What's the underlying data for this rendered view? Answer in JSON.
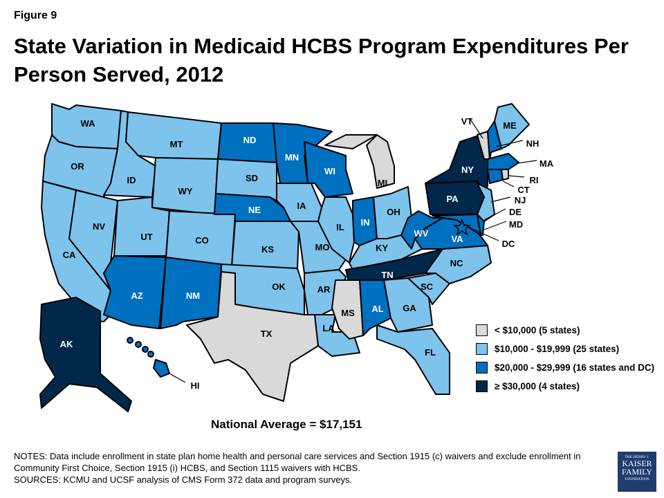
{
  "figure_label": "Figure 9",
  "title": "State Variation in Medicaid HCBS Program Expenditures Per Person Served, 2012",
  "colors": {
    "tier1": "#D9D9D9",
    "tier2": "#7DC3EC",
    "tier3": "#0070C0",
    "tier4": "#00284A"
  },
  "legend": [
    {
      "label": "< $10,000 (5 states)",
      "tier": "tier1"
    },
    {
      "label": "$10,000 - $19,999 (25 states)",
      "tier": "tier2"
    },
    {
      "label": "$20,000 - $29,999 (16 states and DC)",
      "tier": "tier3"
    },
    {
      "label": "≥ $30,000 (4 states)",
      "tier": "tier4"
    }
  ],
  "states": [
    {
      "abbr": "WA",
      "tier": "tier2"
    },
    {
      "abbr": "OR",
      "tier": "tier2"
    },
    {
      "abbr": "CA",
      "tier": "tier2"
    },
    {
      "abbr": "NV",
      "tier": "tier2"
    },
    {
      "abbr": "ID",
      "tier": "tier2"
    },
    {
      "abbr": "MT",
      "tier": "tier2"
    },
    {
      "abbr": "WY",
      "tier": "tier2"
    },
    {
      "abbr": "UT",
      "tier": "tier2"
    },
    {
      "abbr": "CO",
      "tier": "tier2"
    },
    {
      "abbr": "AZ",
      "tier": "tier3"
    },
    {
      "abbr": "NM",
      "tier": "tier3"
    },
    {
      "abbr": "ND",
      "tier": "tier3"
    },
    {
      "abbr": "SD",
      "tier": "tier2"
    },
    {
      "abbr": "NE",
      "tier": "tier3"
    },
    {
      "abbr": "KS",
      "tier": "tier2"
    },
    {
      "abbr": "OK",
      "tier": "tier2"
    },
    {
      "abbr": "TX",
      "tier": "tier1"
    },
    {
      "abbr": "MN",
      "tier": "tier3"
    },
    {
      "abbr": "IA",
      "tier": "tier2"
    },
    {
      "abbr": "MO",
      "tier": "tier2"
    },
    {
      "abbr": "AR",
      "tier": "tier2"
    },
    {
      "abbr": "LA",
      "tier": "tier2"
    },
    {
      "abbr": "WI",
      "tier": "tier3"
    },
    {
      "abbr": "IL",
      "tier": "tier2"
    },
    {
      "abbr": "MI",
      "tier": "tier1"
    },
    {
      "abbr": "IN",
      "tier": "tier3"
    },
    {
      "abbr": "OH",
      "tier": "tier2"
    },
    {
      "abbr": "KY",
      "tier": "tier2"
    },
    {
      "abbr": "TN",
      "tier": "tier4"
    },
    {
      "abbr": "MS",
      "tier": "tier1"
    },
    {
      "abbr": "AL",
      "tier": "tier3"
    },
    {
      "abbr": "GA",
      "tier": "tier2"
    },
    {
      "abbr": "FL",
      "tier": "tier2"
    },
    {
      "abbr": "SC",
      "tier": "tier2"
    },
    {
      "abbr": "NC",
      "tier": "tier2"
    },
    {
      "abbr": "VA",
      "tier": "tier3"
    },
    {
      "abbr": "WV",
      "tier": "tier3"
    },
    {
      "abbr": "PA",
      "tier": "tier4"
    },
    {
      "abbr": "NY",
      "tier": "tier4"
    },
    {
      "abbr": "MD",
      "tier": "tier3"
    },
    {
      "abbr": "DE",
      "tier": "tier3"
    },
    {
      "abbr": "NJ",
      "tier": "tier2"
    },
    {
      "abbr": "VT",
      "tier": "tier1"
    },
    {
      "abbr": "NH",
      "tier": "tier3"
    },
    {
      "abbr": "ME",
      "tier": "tier2"
    },
    {
      "abbr": "MA",
      "tier": "tier3"
    },
    {
      "abbr": "CT",
      "tier": "tier3"
    },
    {
      "abbr": "RI",
      "tier": "tier1"
    },
    {
      "abbr": "AK",
      "tier": "tier4"
    },
    {
      "abbr": "HI",
      "tier": "tier3"
    },
    {
      "abbr": "DC",
      "tier": "tier3"
    }
  ],
  "national_average": "National Average = $17,151",
  "notes": [
    "NOTES: Data include enrollment in state plan home health and personal care services and Section 1915 (c) waivers and exclude enrollment in Community First Choice, Section 1915 (i) HCBS, and Section 1115 waivers with HCBS.",
    "SOURCES: KCMU and UCSF analysis of CMS Form 372 data and program surveys."
  ],
  "logo": {
    "line1": "THE HENRY J.",
    "line2": "KAISER",
    "line3": "FAMILY",
    "line4": "FOUNDATION"
  }
}
